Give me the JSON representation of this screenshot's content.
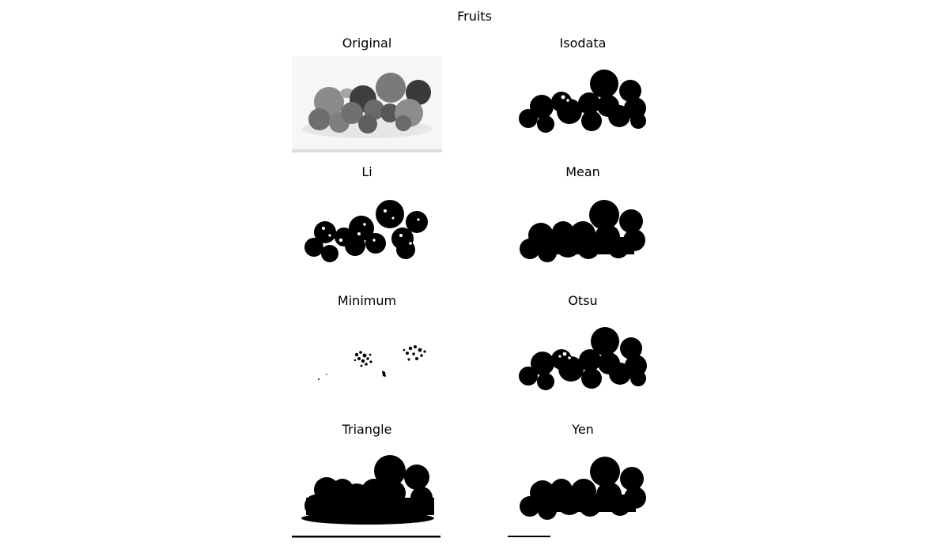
{
  "figure": {
    "title": "Fruits"
  },
  "panels": [
    {
      "title": "Original",
      "kind": "grayscale"
    },
    {
      "title": "Isodata",
      "kind": "binary-solid"
    },
    {
      "title": "Li",
      "kind": "binary-textured"
    },
    {
      "title": "Mean",
      "kind": "binary-merged"
    },
    {
      "title": "Minimum",
      "kind": "binary-sparse"
    },
    {
      "title": "Otsu",
      "kind": "binary-solid"
    },
    {
      "title": "Triangle",
      "kind": "binary-heavy"
    },
    {
      "title": "Yen",
      "kind": "binary-merged-bar"
    }
  ]
}
